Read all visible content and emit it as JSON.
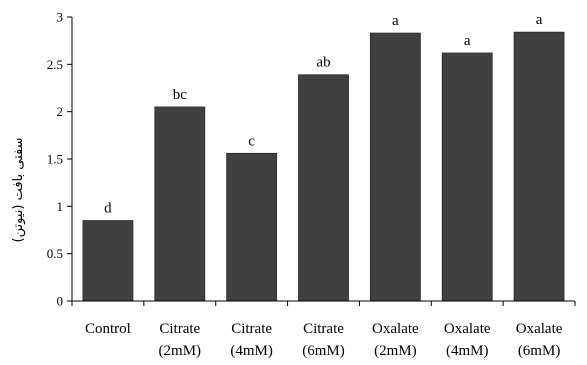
{
  "chart_data": {
    "type": "bar",
    "title": "",
    "xlabel": "",
    "ylabel": "سفتی بافت (نیوتن)",
    "ylim": [
      0,
      3
    ],
    "y_ticks": [
      "0",
      "0.5",
      "1",
      "1.5",
      "2",
      "2.5",
      "3"
    ],
    "categories": [
      [
        "Control"
      ],
      [
        "Citrate",
        "(2mM)"
      ],
      [
        "Citrate",
        "(4mM)"
      ],
      [
        "Citrate",
        "(6mM)"
      ],
      [
        "Oxalate",
        "(2mM)"
      ],
      [
        "Oxalate",
        "(4mM)"
      ],
      [
        "Oxalate",
        "(6mM)"
      ]
    ],
    "values": [
      0.85,
      2.05,
      1.56,
      2.39,
      2.83,
      2.62,
      2.84
    ],
    "significance_labels": [
      "d",
      "bc",
      "c",
      "ab",
      "a",
      "a",
      "a"
    ],
    "bar_color": "#404040",
    "grid": false,
    "legend": "none"
  }
}
